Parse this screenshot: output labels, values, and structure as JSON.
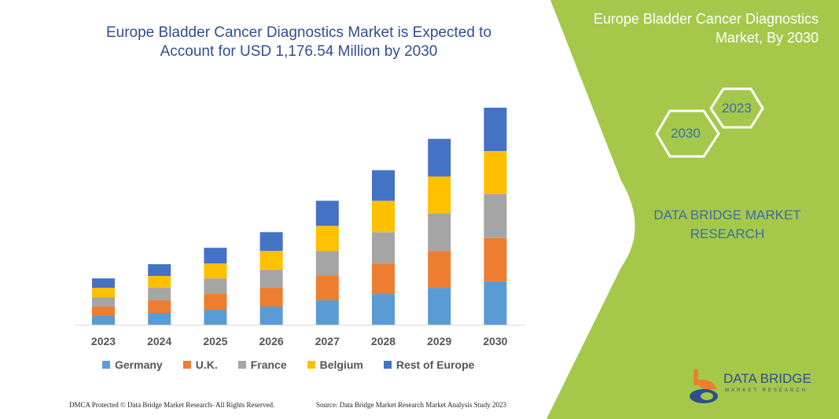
{
  "header": {
    "title": "Europe Bladder Cancer Diagnostics Market is Expected to Account for USD 1,176.54 Million by 2030"
  },
  "side_panel": {
    "title": "Europe Bladder Cancer Diagnostics Market, By 2030",
    "hex_labels": [
      "2030",
      "2023"
    ],
    "brand": "DATA BRIDGE MARKET RESEARCH",
    "logo_text": "DATA BRIDGE",
    "logo_sub": "MARKET RESEARCH",
    "panel_color": "#a5c84b"
  },
  "footer": {
    "left": "DMCA Protected © Data Bridge Market Research- All Rights Reserved.",
    "right": "Source: Data Bridge Market Research Market Analysis Study 2023"
  },
  "chart_data": {
    "type": "bar",
    "stacked": true,
    "title": "Europe Bladder Cancer Diagnostics Market is Expected to Account for USD 1,176.54 Million by 2030",
    "xlabel": "",
    "ylabel": "",
    "y_axis_shown": false,
    "grid": false,
    "legend_position": "bottom",
    "categories": [
      "2023",
      "2024",
      "2025",
      "2026",
      "2027",
      "2028",
      "2029",
      "2030"
    ],
    "series": [
      {
        "name": "Germany",
        "color": "#5b9bd5",
        "values": [
          47,
          64,
          81,
          98,
          132,
          166,
          200,
          235
        ]
      },
      {
        "name": "U.K.",
        "color": "#ed7d31",
        "values": [
          51,
          68,
          85,
          102,
          136,
          166,
          200,
          235
        ]
      },
      {
        "name": "France",
        "color": "#a5a5a5",
        "values": [
          51,
          68,
          85,
          98,
          132,
          170,
          204,
          238
        ]
      },
      {
        "name": "Belgium",
        "color": "#ffc000",
        "values": [
          51,
          64,
          81,
          102,
          136,
          170,
          200,
          234
        ]
      },
      {
        "name": "Rest of Europe",
        "color": "#4472c4",
        "values": [
          51,
          64,
          85,
          102,
          136,
          166,
          204,
          235
        ]
      }
    ]
  }
}
